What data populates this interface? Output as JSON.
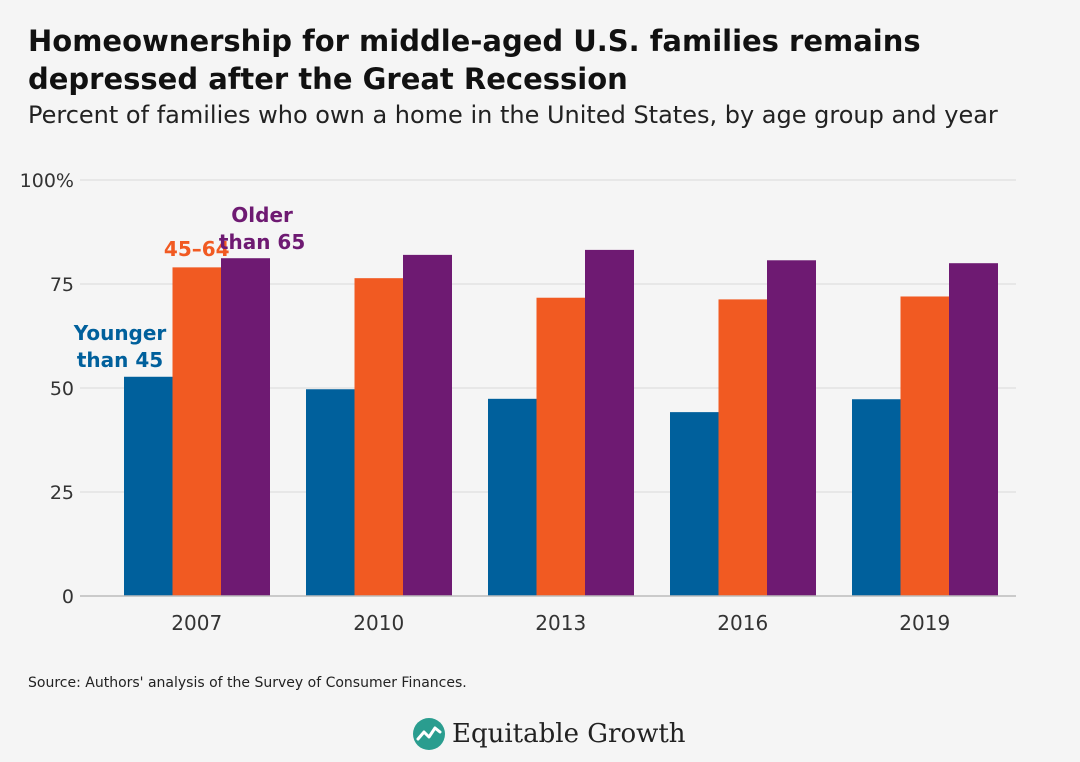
{
  "title": "Homeownership for middle-aged U.S. families remains depressed after the Great Recession",
  "subtitle": "Percent of families who own a home in the United States, by age group and year",
  "source": "Source: Authors' analysis of the Survey of Consumer Finances.",
  "brand": {
    "name": "Equitable Growth",
    "icon": "equitable-growth-logo-icon",
    "icon_color": "#2a9d8f"
  },
  "colors": {
    "younger": "#00609c",
    "middle": "#f15a22",
    "older": "#6e1a72",
    "grid": "#d9d9d9",
    "axis_text": "#333333"
  },
  "chart_data": {
    "type": "bar",
    "categories": [
      "2007",
      "2010",
      "2013",
      "2016",
      "2019"
    ],
    "series": [
      {
        "name": "Younger than 45",
        "label_lines": [
          "Younger",
          "than 45"
        ],
        "color": "#00609c",
        "values": [
          52.7,
          49.7,
          47.4,
          44.2,
          47.3
        ]
      },
      {
        "name": "45–64",
        "label_lines": [
          "45–64"
        ],
        "color": "#f15a22",
        "values": [
          79.0,
          76.4,
          71.7,
          71.3,
          72.0
        ]
      },
      {
        "name": "Older than 65",
        "label_lines": [
          "Older",
          "than 65"
        ],
        "color": "#6e1a72",
        "values": [
          81.2,
          82.0,
          83.2,
          80.7,
          80.0
        ]
      }
    ],
    "yticks": [
      {
        "value": 0,
        "label": "0"
      },
      {
        "value": 25,
        "label": "25"
      },
      {
        "value": 50,
        "label": "50"
      },
      {
        "value": 75,
        "label": "75"
      },
      {
        "value": 100,
        "label": "100%"
      }
    ],
    "ylim": [
      0,
      100
    ],
    "xlabel": "",
    "ylabel": "",
    "grid": true,
    "legend": "direct labels on 2007 bars"
  }
}
